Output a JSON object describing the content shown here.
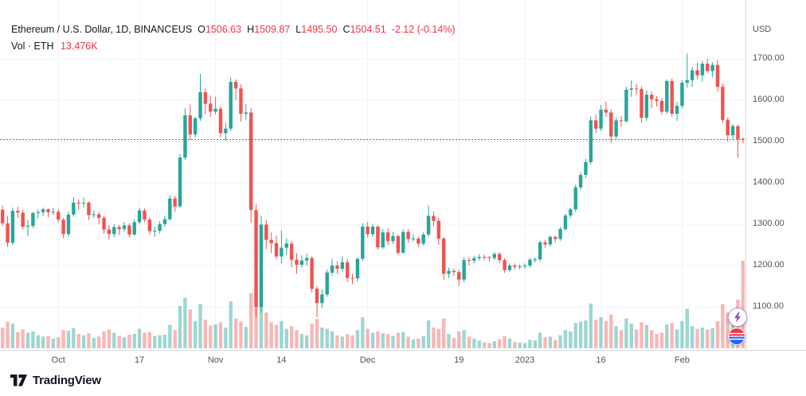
{
  "header": {
    "symbol": "Ethereum / U.S. Dollar, 1D, BINANCEUS",
    "ohlc": [
      {
        "label": "O",
        "value": "1506.63"
      },
      {
        "label": "H",
        "value": "1509.87"
      },
      {
        "label": "L",
        "value": "1495.50"
      },
      {
        "label": "C",
        "value": "1504.51"
      }
    ],
    "change": "-2.12 (-0.14%)",
    "vol_label": "Vol · ETH",
    "vol_value": "13.476K"
  },
  "axis": {
    "currency": "USD",
    "price_ticks": [
      1700,
      1600,
      1500,
      1400,
      1300,
      1200,
      1100
    ],
    "time_ticks": [
      {
        "i": 11,
        "label": "Oct"
      },
      {
        "i": 27,
        "label": "17"
      },
      {
        "i": 42,
        "label": "Nov"
      },
      {
        "i": 55,
        "label": "14"
      },
      {
        "i": 72,
        "label": "Dec"
      },
      {
        "i": 90,
        "label": "19"
      },
      {
        "i": 103,
        "label": "2023"
      },
      {
        "i": 118,
        "label": "16"
      },
      {
        "i": 134,
        "label": "Feb"
      }
    ]
  },
  "footer": {
    "brand": "TradingView"
  },
  "colors": {
    "up": "#26a69a",
    "down": "#ef5350",
    "vol_up": "rgba(38,166,154,0.45)",
    "vol_down": "rgba(239,83,80,0.42)",
    "grid": "#f0f3fa",
    "last_price_line": "#f23645",
    "legend_red": "#f23645",
    "bolt_purple": "#7e57c2",
    "ball_red": "#f23645",
    "ball_blue": "#2962ff"
  },
  "chart_data": {
    "type": "candlestick+volume",
    "title": "Ethereum / U.S. Dollar, 1D, BINANCEUS",
    "interval": "1D",
    "quote_currency": "USD",
    "last_price": 1504.51,
    "ylim": [
      996,
      1842
    ],
    "volume_unit": "K ETH",
    "candle_fields": [
      "open",
      "high",
      "low",
      "close",
      "volume_k"
    ],
    "candles": [
      [
        1335,
        1345,
        1295,
        1302,
        3.2
      ],
      [
        1302,
        1320,
        1245,
        1255,
        4.1
      ],
      [
        1255,
        1340,
        1250,
        1332,
        3.8
      ],
      [
        1332,
        1342,
        1315,
        1328,
        2.5
      ],
      [
        1328,
        1335,
        1288,
        1294,
        2.9
      ],
      [
        1294,
        1310,
        1271,
        1296,
        2.4
      ],
      [
        1296,
        1330,
        1290,
        1327,
        2.6
      ],
      [
        1327,
        1336,
        1314,
        1329,
        2.0
      ],
      [
        1329,
        1340,
        1320,
        1336,
        1.8
      ],
      [
        1336,
        1338,
        1317,
        1329,
        1.9
      ],
      [
        1329,
        1339,
        1322,
        1330,
        1.5
      ],
      [
        1330,
        1336,
        1305,
        1311,
        1.7
      ],
      [
        1311,
        1315,
        1266,
        1276,
        2.8
      ],
      [
        1276,
        1330,
        1270,
        1323,
        2.7
      ],
      [
        1323,
        1365,
        1318,
        1352,
        3.1
      ],
      [
        1352,
        1360,
        1335,
        1351,
        2.2
      ],
      [
        1351,
        1364,
        1340,
        1352,
        2.0
      ],
      [
        1352,
        1355,
        1310,
        1322,
        2.3
      ],
      [
        1322,
        1333,
        1315,
        1324,
        1.6
      ],
      [
        1324,
        1329,
        1300,
        1315,
        1.8
      ],
      [
        1315,
        1320,
        1277,
        1287,
        2.6
      ],
      [
        1287,
        1298,
        1262,
        1276,
        2.9
      ],
      [
        1276,
        1300,
        1268,
        1293,
        2.4
      ],
      [
        1293,
        1298,
        1274,
        1288,
        1.9
      ],
      [
        1288,
        1305,
        1282,
        1297,
        1.7
      ],
      [
        1297,
        1302,
        1268,
        1275,
        2.1
      ],
      [
        1275,
        1312,
        1272,
        1305,
        2.2
      ],
      [
        1305,
        1340,
        1300,
        1333,
        3.0
      ],
      [
        1333,
        1338,
        1305,
        1311,
        2.4
      ],
      [
        1311,
        1316,
        1276,
        1283,
        2.5
      ],
      [
        1283,
        1294,
        1270,
        1284,
        1.9
      ],
      [
        1284,
        1308,
        1278,
        1300,
        2.0
      ],
      [
        1300,
        1320,
        1294,
        1312,
        2.1
      ],
      [
        1312,
        1370,
        1308,
        1362,
        3.6
      ],
      [
        1362,
        1368,
        1330,
        1343,
        2.8
      ],
      [
        1343,
        1470,
        1340,
        1461,
        6.5
      ],
      [
        1461,
        1580,
        1455,
        1563,
        7.8
      ],
      [
        1563,
        1590,
        1503,
        1517,
        6.0
      ],
      [
        1517,
        1560,
        1510,
        1556,
        4.2
      ],
      [
        1556,
        1663,
        1550,
        1619,
        6.8
      ],
      [
        1619,
        1628,
        1566,
        1591,
        4.4
      ],
      [
        1591,
        1611,
        1560,
        1572,
        3.5
      ],
      [
        1572,
        1608,
        1565,
        1579,
        3.7
      ],
      [
        1579,
        1585,
        1510,
        1520,
        4.0
      ],
      [
        1520,
        1545,
        1502,
        1531,
        3.2
      ],
      [
        1531,
        1655,
        1525,
        1644,
        7.2
      ],
      [
        1644,
        1650,
        1600,
        1628,
        4.6
      ],
      [
        1628,
        1638,
        1548,
        1567,
        4.1
      ],
      [
        1567,
        1590,
        1552,
        1570,
        3.3
      ],
      [
        1570,
        1581,
        1303,
        1334,
        8.5
      ],
      [
        1334,
        1348,
        1074,
        1100,
        9.2
      ],
      [
        1100,
        1320,
        1088,
        1299,
        8.8
      ],
      [
        1299,
        1310,
        1240,
        1262,
        5.5
      ],
      [
        1262,
        1280,
        1230,
        1254,
        4.0
      ],
      [
        1254,
        1272,
        1215,
        1222,
        3.6
      ],
      [
        1222,
        1285,
        1206,
        1243,
        4.2
      ],
      [
        1243,
        1265,
        1225,
        1253,
        3.0
      ],
      [
        1253,
        1258,
        1196,
        1214,
        3.4
      ],
      [
        1214,
        1230,
        1180,
        1202,
        2.8
      ],
      [
        1202,
        1225,
        1195,
        1212,
        2.2
      ],
      [
        1212,
        1229,
        1200,
        1218,
        2.0
      ],
      [
        1218,
        1222,
        1135,
        1144,
        3.8
      ],
      [
        1144,
        1150,
        1075,
        1109,
        4.5
      ],
      [
        1109,
        1142,
        1098,
        1130,
        3.2
      ],
      [
        1130,
        1190,
        1125,
        1183,
        3.0
      ],
      [
        1183,
        1216,
        1175,
        1200,
        2.6
      ],
      [
        1200,
        1210,
        1180,
        1192,
        2.0
      ],
      [
        1192,
        1222,
        1185,
        1208,
        1.8
      ],
      [
        1208,
        1215,
        1160,
        1170,
        2.2
      ],
      [
        1170,
        1180,
        1155,
        1169,
        2.0
      ],
      [
        1169,
        1220,
        1162,
        1216,
        2.8
      ],
      [
        1216,
        1302,
        1210,
        1294,
        4.8
      ],
      [
        1294,
        1305,
        1268,
        1276,
        3.0
      ],
      [
        1276,
        1300,
        1270,
        1294,
        2.4
      ],
      [
        1294,
        1298,
        1238,
        1244,
        2.6
      ],
      [
        1244,
        1288,
        1240,
        1280,
        2.3
      ],
      [
        1280,
        1290,
        1250,
        1259,
        2.2
      ],
      [
        1259,
        1281,
        1252,
        1271,
        1.9
      ],
      [
        1271,
        1275,
        1225,
        1231,
        2.4
      ],
      [
        1231,
        1287,
        1228,
        1281,
        2.5
      ],
      [
        1281,
        1288,
        1255,
        1264,
        1.8
      ],
      [
        1264,
        1275,
        1258,
        1265,
        1.4
      ],
      [
        1265,
        1270,
        1245,
        1253,
        1.5
      ],
      [
        1253,
        1280,
        1248,
        1275,
        1.9
      ],
      [
        1275,
        1345,
        1270,
        1320,
        4.3
      ],
      [
        1320,
        1330,
        1295,
        1308,
        3.2
      ],
      [
        1308,
        1315,
        1250,
        1265,
        3.0
      ],
      [
        1265,
        1270,
        1165,
        1180,
        4.6
      ],
      [
        1180,
        1195,
        1170,
        1187,
        2.2
      ],
      [
        1187,
        1192,
        1175,
        1184,
        1.6
      ],
      [
        1184,
        1190,
        1150,
        1166,
        2.6
      ],
      [
        1166,
        1220,
        1160,
        1213,
        2.8
      ],
      [
        1213,
        1220,
        1200,
        1212,
        1.8
      ],
      [
        1212,
        1224,
        1205,
        1218,
        1.5
      ],
      [
        1218,
        1228,
        1212,
        1221,
        1.2
      ],
      [
        1221,
        1226,
        1213,
        1220,
        0.9
      ],
      [
        1220,
        1223,
        1210,
        1218,
        0.8
      ],
      [
        1218,
        1232,
        1214,
        1228,
        1.1
      ],
      [
        1228,
        1232,
        1205,
        1213,
        1.4
      ],
      [
        1213,
        1218,
        1182,
        1189,
        1.9
      ],
      [
        1189,
        1205,
        1185,
        1200,
        1.5
      ],
      [
        1200,
        1205,
        1190,
        1197,
        1.0
      ],
      [
        1197,
        1203,
        1191,
        1198,
        0.9
      ],
      [
        1198,
        1205,
        1192,
        1200,
        0.8
      ],
      [
        1200,
        1218,
        1195,
        1214,
        1.3
      ],
      [
        1214,
        1220,
        1207,
        1215,
        1.2
      ],
      [
        1215,
        1260,
        1210,
        1256,
        2.4
      ],
      [
        1256,
        1262,
        1243,
        1251,
        1.7
      ],
      [
        1251,
        1273,
        1246,
        1269,
        1.8
      ],
      [
        1269,
        1272,
        1256,
        1264,
        1.3
      ],
      [
        1264,
        1293,
        1260,
        1288,
        2.0
      ],
      [
        1288,
        1325,
        1284,
        1321,
        2.8
      ],
      [
        1321,
        1340,
        1315,
        1336,
        2.6
      ],
      [
        1336,
        1395,
        1330,
        1389,
        3.9
      ],
      [
        1389,
        1425,
        1383,
        1419,
        4.1
      ],
      [
        1419,
        1458,
        1412,
        1450,
        4.3
      ],
      [
        1450,
        1560,
        1445,
        1551,
        6.9
      ],
      [
        1551,
        1565,
        1520,
        1531,
        4.4
      ],
      [
        1531,
        1588,
        1525,
        1577,
        4.8
      ],
      [
        1577,
        1596,
        1560,
        1570,
        4.2
      ],
      [
        1570,
        1578,
        1496,
        1512,
        5.2
      ],
      [
        1512,
        1558,
        1505,
        1551,
        3.4
      ],
      [
        1551,
        1562,
        1536,
        1549,
        2.8
      ],
      [
        1549,
        1632,
        1545,
        1625,
        4.6
      ],
      [
        1625,
        1648,
        1608,
        1628,
        3.8
      ],
      [
        1628,
        1639,
        1612,
        1627,
        2.9
      ],
      [
        1627,
        1633,
        1545,
        1557,
        4.0
      ],
      [
        1557,
        1624,
        1550,
        1613,
        3.6
      ],
      [
        1613,
        1620,
        1580,
        1602,
        2.8
      ],
      [
        1602,
        1610,
        1585,
        1598,
        2.2
      ],
      [
        1598,
        1605,
        1565,
        1572,
        2.4
      ],
      [
        1572,
        1650,
        1566,
        1646,
        3.7
      ],
      [
        1646,
        1652,
        1560,
        1567,
        3.9
      ],
      [
        1567,
        1595,
        1550,
        1586,
        2.9
      ],
      [
        1586,
        1648,
        1580,
        1642,
        4.2
      ],
      [
        1642,
        1712,
        1630,
        1648,
        6.1
      ],
      [
        1648,
        1680,
        1632,
        1672,
        3.4
      ],
      [
        1672,
        1690,
        1650,
        1660,
        3.0
      ],
      [
        1660,
        1695,
        1645,
        1688,
        3.2
      ],
      [
        1688,
        1700,
        1665,
        1670,
        2.9
      ],
      [
        1670,
        1692,
        1655,
        1685,
        3.1
      ],
      [
        1685,
        1697,
        1620,
        1632,
        4.2
      ],
      [
        1632,
        1640,
        1545,
        1552,
        6.8
      ],
      [
        1552,
        1558,
        1500,
        1515,
        5.5
      ],
      [
        1515,
        1542,
        1505,
        1537,
        4.2
      ],
      [
        1537,
        1540,
        1461,
        1506,
        7.5
      ],
      [
        1506.63,
        1509.87,
        1495.5,
        1504.51,
        13.476
      ]
    ]
  }
}
